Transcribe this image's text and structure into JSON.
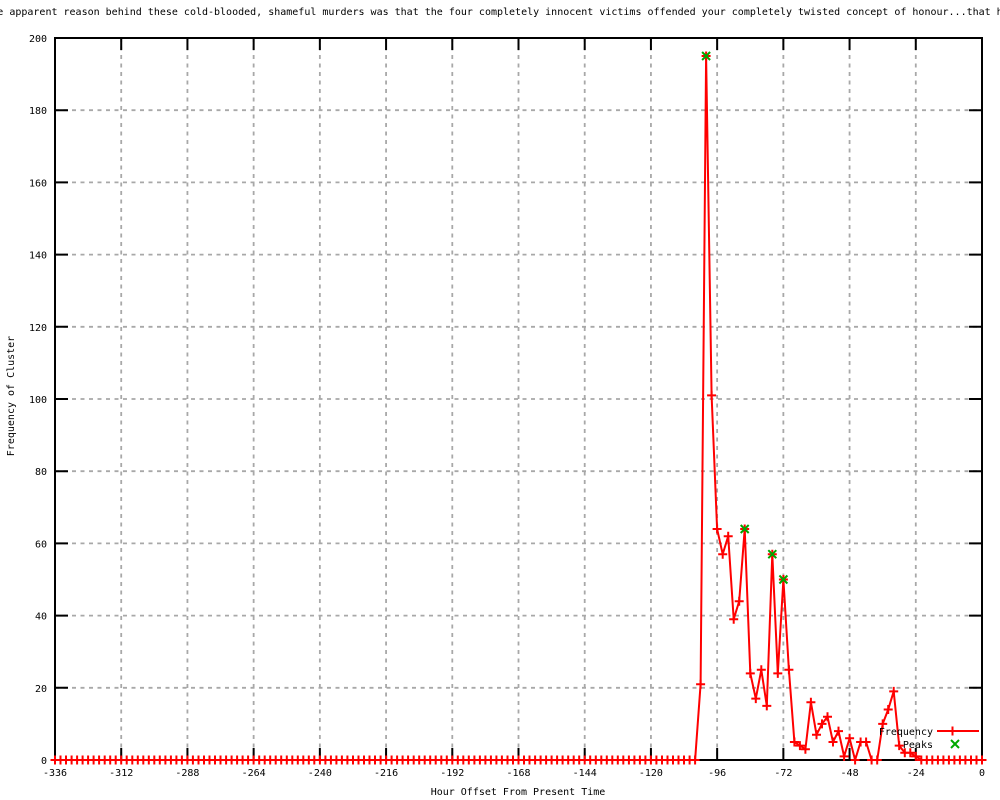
{
  "chart_data": {
    "type": "line",
    "title": "e apparent reason behind these cold-blooded, shameful murders was that the four completely innocent victims offended your completely twisted concept of honour...that h",
    "xlabel": "Hour Offset From Present Time",
    "ylabel": "Frequency of Cluster",
    "xlim": [
      -336,
      0
    ],
    "ylim": [
      0,
      200
    ],
    "x_ticks": [
      -336,
      -312,
      -288,
      -264,
      -240,
      -216,
      -192,
      -168,
      -144,
      -120,
      -96,
      -72,
      -48,
      -24,
      0
    ],
    "y_ticks": [
      0,
      20,
      40,
      60,
      80,
      100,
      120,
      140,
      160,
      180,
      200
    ],
    "grid": true,
    "legend_position": "bottom-right-inside",
    "series": {
      "name": "Frequency",
      "marker": "plus",
      "color": "#ff0000",
      "zeros_before": {
        "from": -336,
        "to": -104,
        "step": 2,
        "value": 0
      },
      "points": [
        [
          -102,
          21
        ],
        [
          -100,
          195
        ],
        [
          -98,
          101
        ],
        [
          -96,
          64
        ],
        [
          -94,
          57
        ],
        [
          -92,
          62
        ],
        [
          -90,
          39
        ],
        [
          -88,
          44
        ],
        [
          -86,
          64
        ],
        [
          -84,
          24
        ],
        [
          -82,
          17
        ],
        [
          -80,
          25
        ],
        [
          -78,
          15
        ],
        [
          -76,
          57
        ],
        [
          -74,
          24
        ],
        [
          -72,
          50
        ],
        [
          -70,
          25
        ],
        [
          -68,
          5
        ],
        [
          -66,
          4
        ],
        [
          -64,
          3
        ],
        [
          -62,
          16
        ],
        [
          -60,
          7
        ],
        [
          -58,
          10
        ],
        [
          -56,
          12
        ],
        [
          -54,
          5
        ],
        [
          -52,
          8
        ],
        [
          -50,
          1
        ],
        [
          -48,
          6
        ],
        [
          -46,
          0
        ],
        [
          -44,
          5
        ],
        [
          -42,
          5
        ],
        [
          -40,
          0
        ],
        [
          -38,
          0
        ],
        [
          -36,
          10
        ],
        [
          -34,
          14
        ],
        [
          -32,
          19
        ],
        [
          -30,
          4
        ],
        [
          -28,
          2
        ],
        [
          -26,
          2
        ],
        [
          -24,
          1
        ]
      ],
      "zeros_after": {
        "from": -22,
        "to": 0,
        "step": 2,
        "value": 0
      }
    },
    "peaks": {
      "name": "Peaks",
      "marker": "cross",
      "color": "#00a800",
      "points": [
        [
          -100,
          195
        ],
        [
          -86,
          64
        ],
        [
          -76,
          57
        ],
        [
          -72,
          50
        ]
      ]
    },
    "colors": {
      "line": "#ff0000",
      "peaks": "#00a800",
      "grid": "#a8a8a8",
      "axis": "#000000",
      "background": "#ffffff",
      "text": "#000000"
    }
  }
}
